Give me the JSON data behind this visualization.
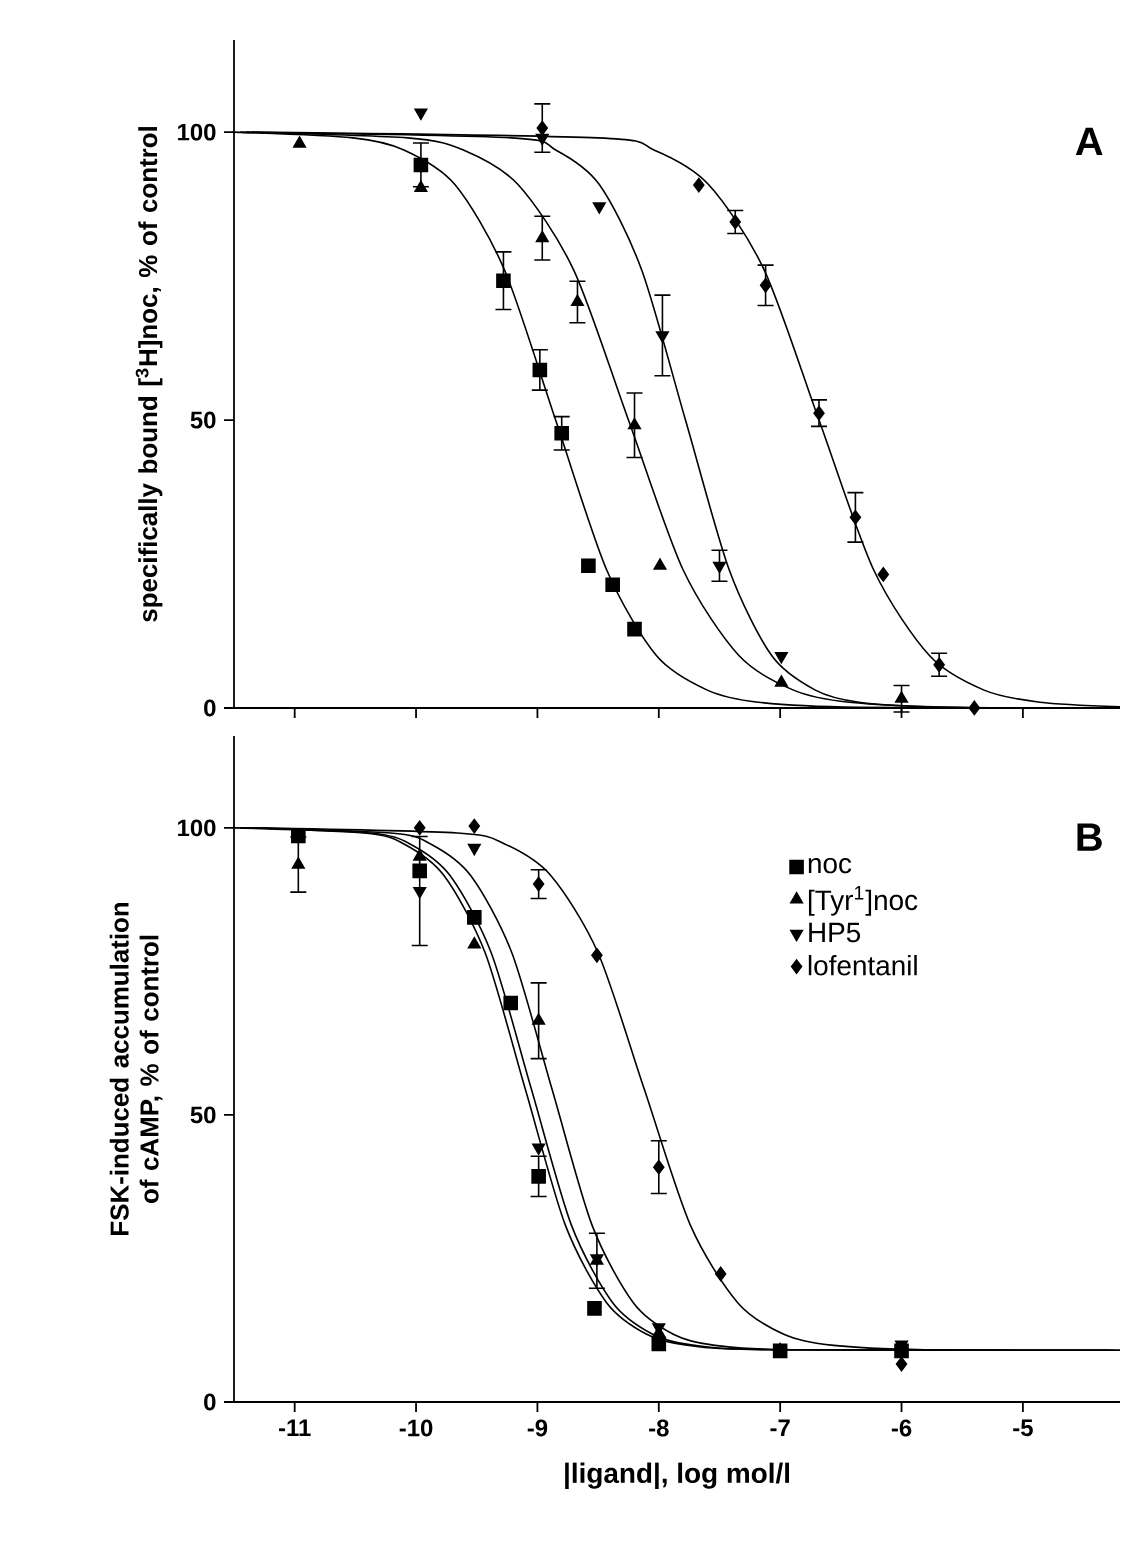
{
  "chart_data": [
    {
      "type": "scatter",
      "ylabel": "specifically bound [$^{3}$H]noc, % of control",
      "annotations": [
        "A"
      ],
      "xlim": [
        -11.5,
        -4.2
      ],
      "ylim": [
        0,
        116
      ],
      "xticks": [
        -11,
        -10,
        -9,
        -8,
        -7,
        -6,
        -5
      ],
      "yticks": [
        0,
        50,
        100
      ],
      "tick_labels": "y",
      "legend": false,
      "grid": false,
      "series": [
        {
          "marker": "square",
          "color": "#000000",
          "x": [
            -9.96,
            -9.28,
            -8.98,
            -8.8,
            -8.58,
            -8.38,
            -8.2
          ],
          "values": [
            94.3,
            74.2,
            58.7,
            47.7,
            24.7,
            21.4,
            13.7
          ],
          "errors": [
            3.8,
            5.0,
            3.5,
            2.9,
            null,
            null,
            null
          ]
        },
        {
          "marker": "triangle",
          "color": "#000000",
          "x": [
            -10.96,
            -9.96,
            -8.96,
            -8.67,
            -8.2,
            -7.99,
            -6.99,
            -6.0
          ],
          "values": [
            98.0,
            90.3,
            81.6,
            70.5,
            49.1,
            24.7,
            4.4,
            1.6
          ],
          "errors": [
            null,
            null,
            3.8,
            3.6,
            5.6,
            null,
            null,
            2.3
          ]
        },
        {
          "marker": "triangle-down",
          "color": "#000000",
          "x": [
            -9.96,
            -8.96,
            -8.49,
            -7.97,
            -7.5,
            -6.99
          ],
          "values": [
            103.4,
            99.0,
            87.1,
            64.7,
            24.7,
            9.0
          ],
          "errors": [
            null,
            null,
            null,
            7.0,
            2.7,
            null
          ]
        },
        {
          "marker": "diamond",
          "color": "#000000",
          "x": [
            -8.96,
            -7.67,
            -7.37,
            -7.12,
            -6.68,
            -6.38,
            -6.15,
            -5.69,
            -5.4
          ],
          "values": [
            100.7,
            90.8,
            84.4,
            73.4,
            51.2,
            33.1,
            23.2,
            7.5,
            0
          ],
          "errors": [
            4.2,
            null,
            2.0,
            3.5,
            2.3,
            4.3,
            null,
            2.0,
            null
          ]
        },
        {
          "type": "line",
          "color": "#000000",
          "x": [
            -11.5,
            -10.52,
            -10.1,
            -9.68,
            -9.27,
            -8.85,
            -8.43,
            -8.02,
            -7.6,
            -7.18,
            -6.35,
            -4.2
          ],
          "values": [
            100,
            99,
            96.9,
            90.9,
            76,
            50,
            24,
            9.1,
            3.1,
            1,
            0.1,
            0
          ]
        },
        {
          "type": "line",
          "color": "#000000",
          "x": [
            -11.45,
            -10.07,
            -9.61,
            -9.16,
            -8.7,
            -8.25,
            -7.8,
            -7.34,
            -6.89,
            -6.43,
            -5.52,
            -4.25
          ],
          "values": [
            100,
            99,
            96.9,
            90.9,
            76,
            50,
            24,
            9.1,
            3.1,
            1,
            0.1,
            0
          ]
        },
        {
          "type": "line",
          "color": "#000000",
          "x": [
            -11.4,
            -9.21,
            -8.85,
            -8.49,
            -8.14,
            -7.78,
            -7.42,
            -7.07,
            -6.71,
            -6.35,
            -5.64,
            -4.3
          ],
          "values": [
            100,
            99,
            96.9,
            90.9,
            76,
            50,
            24,
            9.1,
            3.1,
            1,
            0.1,
            0
          ]
        },
        {
          "type": "line",
          "color": "#000000",
          "x": [
            -11.35,
            -8.5,
            -8.04,
            -7.59,
            -7.13,
            -6.68,
            -6.23,
            -5.77,
            -5.32,
            -4.86,
            -4.2
          ],
          "values": [
            100,
            99,
            96.9,
            90.9,
            76,
            50,
            24,
            9.1,
            3.1,
            1,
            0.2
          ]
        }
      ]
    },
    {
      "type": "scatter",
      "ylabel": "FSK-induced accumulation of cAMP, % of control",
      "xlabel": "|ligand|, log mol/l",
      "annotations": [
        "B"
      ],
      "xlim": [
        -11.5,
        -4.2
      ],
      "ylim": [
        0,
        116
      ],
      "xticks": [
        -11,
        -10,
        -9,
        -8,
        -7,
        -6,
        -5
      ],
      "yticks": [
        0,
        50,
        100
      ],
      "legend": "right",
      "grid": false,
      "series": [
        {
          "name": "noc",
          "marker": "square",
          "color": "#000000",
          "x": [
            -10.97,
            -9.97,
            -9.52,
            -9.22,
            -8.99,
            -8.53,
            -8.0,
            -7.0,
            -6.0
          ],
          "values": [
            98.6,
            92.5,
            84.4,
            69.5,
            39.3,
            16.3,
            10.1,
            8.9,
            8.9
          ],
          "errors": [
            null,
            null,
            null,
            null,
            3.5,
            null,
            null,
            null,
            null
          ]
        },
        {
          "name": "[Tyr$^{1}$]noc",
          "marker": "triangle",
          "color": "#000000",
          "x": [
            -10.97,
            -9.97,
            -9.52,
            -8.99,
            -8.51,
            -8.0,
            -7.0
          ],
          "values": [
            93.6,
            95,
            79.7,
            66.4,
            24.6,
            12,
            9
          ],
          "errors": [
            4.8,
            null,
            null,
            6.6,
            4.8,
            null,
            null
          ]
        },
        {
          "name": "HP5",
          "marker": "triangle-down",
          "color": "#000000",
          "x": [
            -9.97,
            -9.52,
            -8.99,
            -8.51,
            -8.0,
            -6.0
          ],
          "values": [
            89,
            96.5,
            44.3,
            25,
            13,
            10
          ],
          "errors": [
            9.5,
            null,
            null,
            null,
            null,
            null
          ]
        },
        {
          "name": "lofentanil",
          "marker": "diamond",
          "color": "#000000",
          "x": [
            -9.97,
            -9.52,
            -8.99,
            -8.51,
            -8.0,
            -7.49,
            -6.0
          ],
          "values": [
            100,
            100.3,
            90.2,
            77.8,
            40.9,
            22.3,
            6.6
          ],
          "errors": [
            null,
            null,
            2.5,
            null,
            4.6,
            null,
            null
          ]
        },
        {
          "type": "line",
          "color": "#000000",
          "x": [
            -11.5,
            -10.43,
            -10.1,
            -9.77,
            -9.43,
            -9.1,
            -8.77,
            -8.43,
            -8.1,
            -7.77,
            -7.1,
            -4.2
          ],
          "values": [
            100,
            99.1,
            97.2,
            91.7,
            78.2,
            54.5,
            30.8,
            17.3,
            11.8,
            9.9,
            9.1,
            9
          ]
        },
        {
          "type": "line",
          "color": "#000000",
          "x": [
            -11.45,
            -10.21,
            -9.88,
            -9.55,
            -9.21,
            -8.88,
            -8.55,
            -8.21,
            -7.88,
            -7.55,
            -6.88,
            -4.25
          ],
          "values": [
            100,
            99.1,
            97.2,
            91.7,
            78.2,
            54.5,
            30.8,
            17.3,
            11.8,
            9.9,
            9.1,
            9
          ]
        },
        {
          "type": "line",
          "color": "#000000",
          "x": [
            -11.4,
            -10.38,
            -10.05,
            -9.72,
            -9.38,
            -9.05,
            -8.72,
            -8.38,
            -8.05,
            -7.72,
            -7.05,
            -4.3
          ],
          "values": [
            100,
            99.1,
            97.2,
            91.7,
            78.2,
            54.5,
            30.8,
            17.3,
            11.8,
            9.9,
            9.1,
            9
          ]
        },
        {
          "type": "line",
          "color": "#000000",
          "x": [
            -11.35,
            -9.66,
            -9.27,
            -8.89,
            -8.5,
            -8.12,
            -7.74,
            -7.35,
            -6.97,
            -6.58,
            -5.81,
            -4.2
          ],
          "values": [
            100,
            99.1,
            97.2,
            91.7,
            78.2,
            54.5,
            30.8,
            17.3,
            11.8,
            9.9,
            9.1,
            9
          ]
        }
      ]
    }
  ]
}
